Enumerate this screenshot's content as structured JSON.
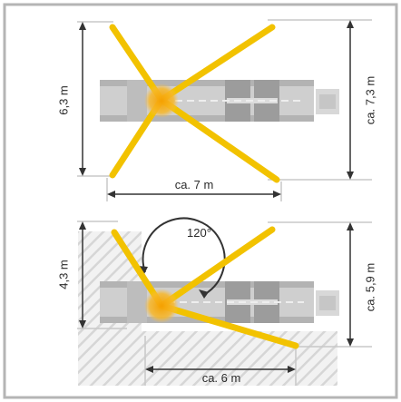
{
  "top_diagram": {
    "height_left": "6,3 m",
    "height_right": "ca. 7,3 m",
    "width_bottom": "ca. 7 m"
  },
  "bottom_diagram": {
    "angle": "120°",
    "height_left": "4,3 m",
    "height_right": "ca. 5,9 m",
    "width_bottom": "ca. 6 m"
  },
  "colors": {
    "outrigger": "#f2c200",
    "pivot": "#f5a400",
    "vehicle": "#c9c9c9",
    "border": "#b9b9b9",
    "hatch": "#d9d9d9"
  }
}
